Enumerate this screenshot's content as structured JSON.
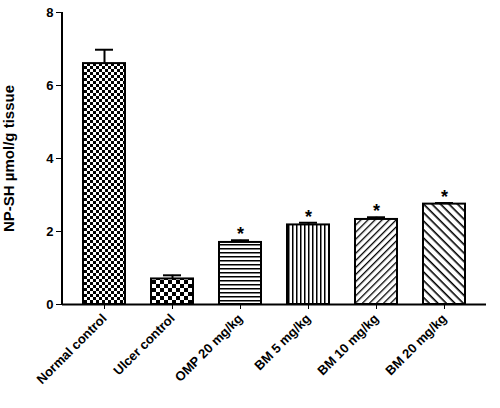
{
  "chart_data": {
    "type": "bar",
    "y_label": "NP-SH µmol/g tissue",
    "categories": [
      "Normal control",
      "Ulcer control",
      "OMP 20 mg/kg",
      "BM 5 mg/kg",
      "BM 10 mg/kg",
      "BM 20 mg/kg"
    ],
    "values": [
      6.6,
      0.7,
      1.7,
      2.18,
      2.33,
      2.75
    ],
    "errors": [
      0.38,
      0.1,
      0.06,
      0.06,
      0.06,
      0.03
    ],
    "annotations": [
      null,
      null,
      "*",
      "*",
      "*",
      "*"
    ],
    "color": "#000000",
    "ylim": [
      0,
      8
    ],
    "yticks": [
      0,
      2,
      4,
      6,
      8
    ],
    "grid": false
  }
}
